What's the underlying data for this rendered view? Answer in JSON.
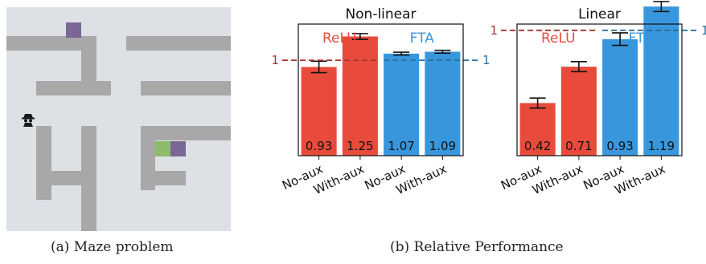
{
  "maze": {
    "caption": "(a) Maze problem",
    "colors": {
      "floor": "#dde1e6",
      "wall": "#a8a8a8",
      "goal": "#7a6796",
      "start": "#8dbb6a",
      "agent": "#1a1a1a"
    },
    "icons": [
      "agent-icon"
    ]
  },
  "figure_b": {
    "caption": "(b) Relative Performance"
  },
  "chart_data": [
    {
      "type": "bar",
      "title": "Non-linear",
      "categories": [
        "No-aux",
        "With-aux",
        "No-aux",
        "With-aux"
      ],
      "groups": [
        {
          "name": "ReLU",
          "color": "#e84b3c",
          "indices": [
            0,
            1
          ]
        },
        {
          "name": "FTA",
          "color": "#3897dc",
          "indices": [
            2,
            3
          ]
        }
      ],
      "values": [
        0.93,
        1.25,
        1.07,
        1.09
      ],
      "errors": [
        0.06,
        0.03,
        0.015,
        0.015
      ],
      "value_labels": [
        "0.93",
        "1.25",
        "1.07",
        "1.09"
      ],
      "reference_lines": [
        {
          "value": 1,
          "label": "1",
          "color": "#a3342a",
          "side": "left",
          "span": [
            0,
            1
          ]
        },
        {
          "value": 1,
          "label": "1",
          "color": "#2b6d9c",
          "side": "right",
          "span": [
            2,
            3
          ]
        }
      ],
      "ylim": [
        0,
        1.38
      ],
      "grid": false,
      "xlabel": "",
      "ylabel": ""
    },
    {
      "type": "bar",
      "title": "Linear",
      "categories": [
        "No-aux",
        "With-aux",
        "No-aux",
        "With-aux"
      ],
      "groups": [
        {
          "name": "ReLU",
          "color": "#e84b3c",
          "indices": [
            0,
            1
          ]
        },
        {
          "name": "FTA",
          "color": "#3897dc",
          "indices": [
            2,
            3
          ]
        }
      ],
      "values": [
        0.42,
        0.71,
        0.93,
        1.19
      ],
      "errors": [
        0.04,
        0.04,
        0.05,
        0.04
      ],
      "value_labels": [
        "0.42",
        "0.71",
        "0.93",
        "1.19"
      ],
      "reference_lines": [
        {
          "value": 1,
          "label": "1",
          "color": "#a3342a",
          "side": "left",
          "span": [
            0,
            1
          ]
        },
        {
          "value": 1,
          "label": "1",
          "color": "#2b6d9c",
          "side": "right",
          "span": [
            2,
            3
          ]
        }
      ],
      "ylim": [
        0,
        1.05
      ],
      "grid": false,
      "xlabel": "",
      "ylabel": ""
    }
  ]
}
